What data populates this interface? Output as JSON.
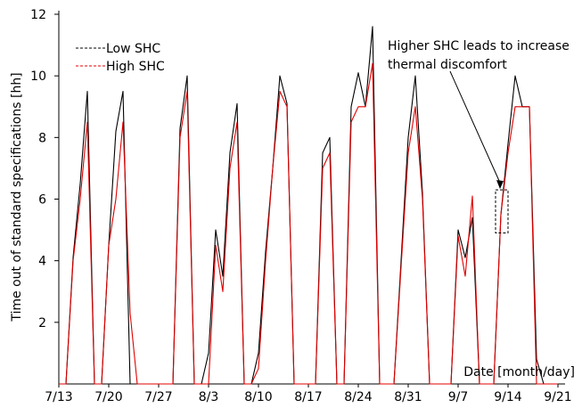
{
  "chart_data": {
    "type": "line",
    "title": "",
    "xlabel": "Date [month/day]",
    "ylabel": "Time out of standard specifications [hh]",
    "ylim": [
      0,
      12
    ],
    "yticks": [
      2,
      4,
      6,
      8,
      10,
      12
    ],
    "xlim": [
      "2023-07-13",
      "2023-09-22"
    ],
    "xticks": [
      "7/13",
      "7/20",
      "7/27",
      "8/3",
      "8/10",
      "8/17",
      "8/24",
      "8/31",
      "9/7",
      "9/14",
      "9/21"
    ],
    "annotation": "Higher SHC leads to increase thermal discomfort",
    "annotation_dates": [
      "2023-09-12",
      "2023-09-13"
    ],
    "annotation_box": [
      4.9,
      6.3
    ],
    "legend_position": "top-left",
    "colors": {
      "low": "#000000",
      "high": "#e00000"
    },
    "series": [
      {
        "name": "Low SHC",
        "x": [
          "2023-07-13",
          "2023-07-14",
          "2023-07-15",
          "2023-07-16",
          "2023-07-17",
          "2023-07-18",
          "2023-07-19",
          "2023-07-20",
          "2023-07-21",
          "2023-07-22",
          "2023-07-23",
          "2023-07-24",
          "2023-07-25",
          "2023-07-26",
          "2023-07-27",
          "2023-07-28",
          "2023-07-29",
          "2023-07-30",
          "2023-07-31",
          "2023-08-01",
          "2023-08-02",
          "2023-08-03",
          "2023-08-04",
          "2023-08-05",
          "2023-08-06",
          "2023-08-07",
          "2023-08-08",
          "2023-08-09",
          "2023-08-10",
          "2023-08-11",
          "2023-08-12",
          "2023-08-13",
          "2023-08-14",
          "2023-08-15",
          "2023-08-16",
          "2023-08-17",
          "2023-08-18",
          "2023-08-19",
          "2023-08-20",
          "2023-08-21",
          "2023-08-22",
          "2023-08-23",
          "2023-08-24",
          "2023-08-25",
          "2023-08-26",
          "2023-08-27",
          "2023-08-28",
          "2023-08-29",
          "2023-08-30",
          "2023-08-31",
          "2023-09-01",
          "2023-09-02",
          "2023-09-03",
          "2023-09-04",
          "2023-09-05",
          "2023-09-06",
          "2023-09-07",
          "2023-09-08",
          "2023-09-09",
          "2023-09-10",
          "2023-09-11",
          "2023-09-12",
          "2023-09-13",
          "2023-09-14",
          "2023-09-15",
          "2023-09-16",
          "2023-09-17",
          "2023-09-18",
          "2023-09-19",
          "2023-09-20",
          "2023-09-21"
        ],
        "y": [
          0,
          0,
          4.1,
          6.5,
          9.5,
          0,
          0,
          4.5,
          8.2,
          9.5,
          0,
          0,
          0,
          0,
          0,
          0,
          0,
          8.3,
          10,
          0,
          0,
          1,
          5,
          3.5,
          7.5,
          9.1,
          0,
          0,
          1,
          4.3,
          7,
          10,
          9.1,
          0,
          0,
          0,
          0,
          7.5,
          8,
          0,
          0,
          9,
          10.1,
          9,
          11.6,
          0,
          0,
          0,
          4,
          8,
          10,
          6.2,
          0,
          0,
          0,
          0,
          5,
          4.1,
          5.4,
          0,
          0,
          0,
          5.5,
          7.8,
          10,
          9,
          9,
          0.8,
          0,
          0,
          0
        ]
      },
      {
        "name": "High SHC",
        "x": [
          "2023-07-13",
          "2023-07-14",
          "2023-07-15",
          "2023-07-16",
          "2023-07-17",
          "2023-07-18",
          "2023-07-19",
          "2023-07-20",
          "2023-07-21",
          "2023-07-22",
          "2023-07-23",
          "2023-07-24",
          "2023-07-25",
          "2023-07-26",
          "2023-07-27",
          "2023-07-28",
          "2023-07-29",
          "2023-07-30",
          "2023-07-31",
          "2023-08-01",
          "2023-08-02",
          "2023-08-03",
          "2023-08-04",
          "2023-08-05",
          "2023-08-06",
          "2023-08-07",
          "2023-08-08",
          "2023-08-09",
          "2023-08-10",
          "2023-08-11",
          "2023-08-12",
          "2023-08-13",
          "2023-08-14",
          "2023-08-15",
          "2023-08-16",
          "2023-08-17",
          "2023-08-18",
          "2023-08-19",
          "2023-08-20",
          "2023-08-21",
          "2023-08-22",
          "2023-08-23",
          "2023-08-24",
          "2023-08-25",
          "2023-08-26",
          "2023-08-27",
          "2023-08-28",
          "2023-08-29",
          "2023-08-30",
          "2023-08-31",
          "2023-09-01",
          "2023-09-02",
          "2023-09-03",
          "2023-09-04",
          "2023-09-05",
          "2023-09-06",
          "2023-09-07",
          "2023-09-08",
          "2023-09-09",
          "2023-09-10",
          "2023-09-11",
          "2023-09-12",
          "2023-09-13",
          "2023-09-14",
          "2023-09-15",
          "2023-09-16",
          "2023-09-17",
          "2023-09-18",
          "2023-09-19",
          "2023-09-20",
          "2023-09-21"
        ],
        "y": [
          0,
          0,
          4,
          6,
          8.5,
          0,
          0,
          4.5,
          6,
          8.5,
          2.3,
          0,
          0,
          0,
          0,
          0,
          0,
          8,
          9.5,
          0,
          0,
          0,
          4.5,
          3,
          7,
          8.5,
          0,
          0,
          0.5,
          4,
          7,
          9.5,
          9,
          0,
          0,
          0,
          0,
          7,
          7.5,
          0,
          0,
          8.5,
          9,
          9,
          10.4,
          0,
          0,
          0,
          3.8,
          7.5,
          9,
          6,
          0,
          0,
          0,
          0,
          4.8,
          3.5,
          6.1,
          0,
          0,
          0,
          5.5,
          7.5,
          9,
          9,
          9,
          0,
          0,
          0,
          0
        ]
      }
    ]
  }
}
